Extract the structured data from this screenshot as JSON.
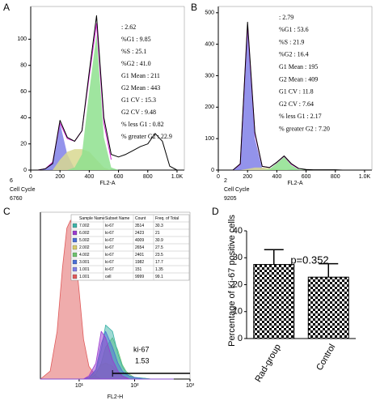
{
  "chart_data": [
    {
      "type": "area",
      "label": "A",
      "xlabel": "FL2-A",
      "notes": [
        "6",
        "Cell Cycle",
        "6760"
      ],
      "stats": [
        ": 2.62",
        "%G1 : 9.85",
        "%S : 25.1",
        "%G2 : 41.0",
        "G1 Mean : 211",
        "G2 Mean : 443",
        "G1 CV : 15.3",
        "G2 CV : 9.48",
        "% less G1 : 0.82",
        "% greater G2 : 22.9"
      ],
      "x": [
        0,
        50,
        100,
        150,
        200,
        250,
        300,
        350,
        400,
        450,
        500,
        550,
        600,
        650,
        700,
        750,
        800,
        850,
        900,
        950,
        1000
      ],
      "xlim": [
        0,
        1050
      ],
      "xticks": [
        0,
        200,
        400,
        600,
        800,
        {
          "value": 1000,
          "label": "1.0K"
        }
      ],
      "ylim": [
        0,
        125
      ],
      "yticks": [
        0,
        20,
        40,
        60,
        80,
        100
      ],
      "series": [
        {
          "style": "area",
          "color": "#8080e8",
          "values": [
            0,
            0,
            1,
            6,
            36,
            12,
            1,
            0,
            0,
            0,
            0,
            0,
            0,
            0,
            0,
            0,
            0,
            0,
            0,
            0,
            0
          ]
        },
        {
          "style": "area",
          "color": "#d8d890",
          "values": [
            0,
            0,
            0,
            0,
            8,
            14,
            16,
            16,
            14,
            8,
            2,
            0,
            0,
            0,
            0,
            0,
            0,
            0,
            0,
            0,
            0
          ]
        },
        {
          "style": "area",
          "color": "#8ee08e",
          "values": [
            0,
            0,
            0,
            0,
            0,
            0,
            2,
            12,
            60,
            104,
            25,
            2,
            0,
            0,
            0,
            0,
            0,
            0,
            0,
            0,
            0
          ]
        },
        {
          "style": "line",
          "color": "#d020d0",
          "values": [
            0,
            0,
            1,
            6,
            36,
            24,
            22,
            30,
            72,
            112,
            36,
            8,
            null,
            null,
            null,
            null,
            null,
            null,
            null,
            null,
            null
          ]
        },
        {
          "style": "line",
          "color": "#000000",
          "values": [
            0,
            0,
            1,
            5,
            38,
            25,
            22,
            30,
            75,
            118,
            40,
            12,
            10,
            12,
            15,
            18,
            20,
            28,
            22,
            3,
            0
          ]
        }
      ]
    },
    {
      "type": "area",
      "label": "B",
      "xlabel": "FL2-A",
      "notes": [
        "2",
        "Cell Cycle",
        "9205"
      ],
      "stats": [
        ": 2.79",
        "%G1 : 53.6",
        "%S : 21.9",
        "%G2 : 16.4",
        "G1 Mean : 195",
        "G2 Mean : 409",
        "G1 CV : 11.8",
        "G2 CV : 7.64",
        "% less G1 : 2.17",
        "% greater G2 : 7.20"
      ],
      "x": [
        0,
        50,
        100,
        150,
        200,
        250,
        300,
        350,
        400,
        450,
        500,
        550,
        600,
        650,
        700,
        750,
        800,
        850,
        900,
        950,
        1000
      ],
      "xlim": [
        0,
        1050
      ],
      "xticks": [
        0,
        200,
        400,
        600,
        800,
        {
          "value": 1000,
          "label": "1.0K"
        }
      ],
      "ylim": [
        0,
        520
      ],
      "yticks": [
        0,
        100,
        200,
        300,
        400,
        500
      ],
      "series": [
        {
          "style": "area",
          "color": "#8080e8",
          "values": [
            0,
            0,
            0,
            18,
            460,
            100,
            5,
            0,
            0,
            0,
            0,
            0,
            0,
            0,
            0,
            0,
            0,
            0,
            0,
            0,
            0
          ]
        },
        {
          "style": "area",
          "color": "#d8d890",
          "values": [
            0,
            0,
            0,
            0,
            4,
            8,
            8,
            6,
            4,
            2,
            0,
            0,
            0,
            0,
            0,
            0,
            0,
            0,
            0,
            0,
            0
          ]
        },
        {
          "style": "area",
          "color": "#8ee08e",
          "values": [
            0,
            0,
            0,
            0,
            0,
            0,
            0,
            3,
            22,
            42,
            15,
            2,
            0,
            0,
            0,
            0,
            0,
            0,
            0,
            0,
            0
          ]
        },
        {
          "style": "line",
          "color": "#d020d0",
          "values": [
            0,
            0,
            0,
            18,
            460,
            115,
            12,
            8,
            24,
            44,
            18,
            4,
            null,
            null,
            null,
            null,
            null,
            null,
            null,
            null,
            null
          ]
        },
        {
          "style": "line",
          "color": "#000000",
          "values": [
            0,
            0,
            0,
            20,
            470,
            120,
            12,
            8,
            25,
            45,
            20,
            5,
            2,
            1,
            1,
            1,
            1,
            0,
            0,
            0,
            0
          ]
        }
      ]
    },
    {
      "type": "area",
      "label": "C",
      "xlabel": "FL2-H",
      "xlog": true,
      "x": [
        2,
        3,
        4,
        5,
        6,
        7,
        8,
        10,
        12,
        15,
        20,
        25,
        30,
        40,
        50,
        60,
        70,
        80,
        100,
        150,
        200,
        300,
        500
      ],
      "xlim": [
        2,
        1000
      ],
      "xticks": [
        {
          "value": 10,
          "label": "10¹"
        },
        {
          "value": 100,
          "label": "10²"
        },
        {
          "value": 1000,
          "label": "10³"
        }
      ],
      "ylim": [
        0,
        105
      ],
      "series": [
        {
          "style": "area",
          "color": "#e05a5a",
          "values": [
            0,
            5,
            30,
            70,
            95,
            100,
            90,
            55,
            25,
            8,
            2,
            0,
            0,
            0,
            0,
            0,
            0,
            0,
            0,
            0,
            0,
            0,
            0
          ]
        },
        {
          "style": "area",
          "color": "#d8cc6a",
          "values": [
            0,
            0,
            0,
            0,
            0,
            0,
            0,
            0,
            0,
            1,
            4,
            9,
            10,
            8,
            4,
            2,
            1,
            0,
            0,
            0,
            0,
            0,
            0
          ]
        },
        {
          "style": "area",
          "color": "#6cc36c",
          "values": [
            0,
            0,
            0,
            0,
            0,
            0,
            0,
            0,
            0,
            0,
            3,
            10,
            20,
            26,
            18,
            9,
            5,
            3,
            1,
            0.5,
            0,
            0,
            0
          ]
        },
        {
          "style": "area",
          "color": "#3bb3a8",
          "values": [
            0,
            0,
            0,
            0,
            0,
            0,
            0,
            0,
            0,
            1,
            5,
            18,
            34,
            30,
            16,
            8,
            4,
            2,
            1,
            0.5,
            0,
            0,
            0
          ]
        },
        {
          "style": "area",
          "color": "#4a6fd6",
          "values": [
            0,
            0,
            0,
            0,
            0,
            0,
            0,
            0,
            0,
            1,
            6,
            22,
            30,
            20,
            10,
            5,
            3,
            2,
            1,
            0,
            0,
            0,
            0
          ]
        },
        {
          "style": "area",
          "color": "#9a3ad0",
          "values": [
            0,
            0,
            0,
            0,
            0,
            0,
            0,
            0,
            0,
            2,
            10,
            30,
            26,
            12,
            5,
            2,
            1,
            0,
            0,
            0,
            0,
            0,
            0
          ]
        }
      ],
      "gate": {
        "label": "ki-67",
        "value": "1.53",
        "range": [
          40,
          1000
        ]
      },
      "table": {
        "columns": [
          "Sample Name",
          "Subset Name",
          "Count",
          "Freq. of Total"
        ],
        "colors": [
          "#3bb3a8",
          "#9a3ad0",
          "#4a6fd6",
          "#d8cc6a",
          "#6cc36c",
          "#4a6fd6",
          "#8080e8",
          "#e05a5a"
        ],
        "rows": [
          [
            "7.002",
            "ki-67",
            3514,
            30.3
          ],
          [
            "6.002",
            "ki-67",
            2423,
            21.0
          ],
          [
            "5.002",
            "ki-67",
            4009,
            30.9
          ],
          [
            "2.002",
            "ki-67",
            2654,
            27.5
          ],
          [
            "4.002",
            "ki-67",
            2401,
            23.5
          ],
          [
            "3.001",
            "ki-67",
            1982,
            17.7
          ],
          [
            "1.001",
            "ki-67",
            151,
            1.35
          ],
          [
            "1.001",
            "cell",
            9999,
            99.1
          ]
        ]
      }
    },
    {
      "type": "bar",
      "label": "D",
      "ylabel": "Percentage of Ki-67 positive cells",
      "annotation": "p=0.352",
      "categories": [
        "Rad-group",
        "Control"
      ],
      "values": [
        27.5,
        22.8
      ],
      "errors": [
        5.5,
        5
      ],
      "color": "#000000",
      "ylim": [
        0,
        40
      ],
      "yticks": [
        0,
        10,
        20,
        30,
        40
      ]
    }
  ]
}
